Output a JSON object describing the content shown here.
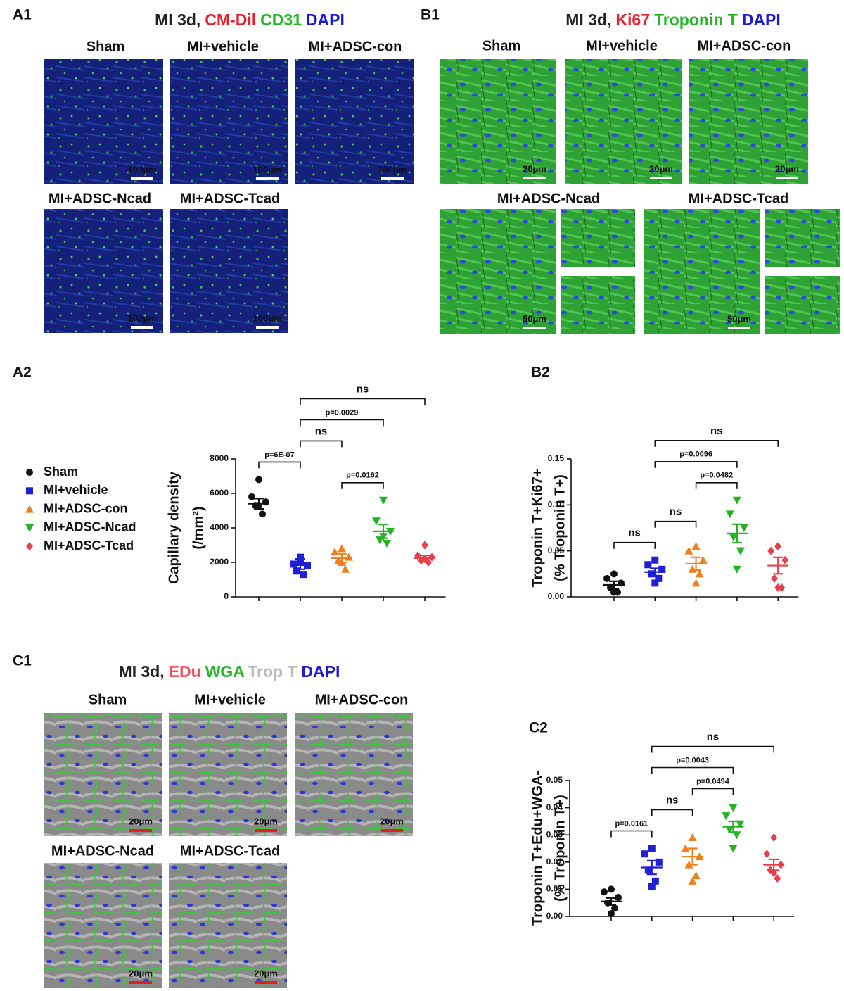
{
  "panels": [
    {
      "label": "A1",
      "title": [
        {
          "text": "MI 3d,",
          "color": "#222222"
        },
        {
          "text": "CM-Dil",
          "color": "#e8202a"
        },
        {
          "text": "CD31",
          "color": "#22b822"
        },
        {
          "text": "DAPI",
          "color": "#1a1ad0"
        }
      ],
      "images": [
        {
          "title": "Sham",
          "scale_bar": "100μm"
        },
        {
          "title": "MI+vehicle",
          "scale_bar": "100μm"
        },
        {
          "title": "MI+ADSC-con",
          "scale_bar": "100μm"
        },
        {
          "title": "MI+ADSC-Ncad",
          "scale_bar": "100μm"
        },
        {
          "title": "MI+ADSC-Tcad",
          "scale_bar": "100μm"
        }
      ]
    },
    {
      "label": "B1",
      "title": [
        {
          "text": "MI 3d,",
          "color": "#222222"
        },
        {
          "text": "Ki67",
          "color": "#e8202a"
        },
        {
          "text": "Troponin T",
          "color": "#22b822"
        },
        {
          "text": "DAPI",
          "color": "#1a1ad0"
        }
      ],
      "images": [
        {
          "title": "Sham",
          "scale_bar": "20μm"
        },
        {
          "title": "MI+vehicle",
          "scale_bar": "20μm"
        },
        {
          "title": "MI+ADSC-con",
          "scale_bar": "20μm"
        },
        {
          "title": "MI+ADSC-Ncad",
          "scale_bar": "50μm"
        },
        {
          "title": "MI+ADSC-Tcad",
          "scale_bar": "50μm"
        }
      ]
    },
    {
      "label": "C1",
      "title": [
        {
          "text": "MI 3d,",
          "color": "#222222"
        },
        {
          "text": "EDu",
          "color": "#f05060"
        },
        {
          "text": "WGA",
          "color": "#22b822"
        },
        {
          "text": "Trop T",
          "color": "#bbbbbb"
        },
        {
          "text": "DAPI",
          "color": "#1a1ad0"
        }
      ],
      "images": [
        {
          "title": "Sham",
          "scale_bar": "20μm"
        },
        {
          "title": "MI+vehicle",
          "scale_bar": "20μm"
        },
        {
          "title": "MI+ADSC-con",
          "scale_bar": "20μm"
        },
        {
          "title": "MI+ADSC-Ncad",
          "scale_bar": "20μm"
        },
        {
          "title": "MI+ADSC-Tcad",
          "scale_bar": "20μm"
        }
      ]
    }
  ],
  "chart_data": [
    {
      "type": "scatter",
      "label": "A2",
      "ylabel": [
        "Capillary density",
        "(/mm²)"
      ],
      "legend": true,
      "ylim": [
        0,
        8000
      ],
      "yticks": [
        0,
        2000,
        4000,
        6000,
        8000
      ],
      "series": [
        {
          "name": "Sham",
          "color": "#111111",
          "marker": "circle",
          "values": [
            6800,
            5800,
            5500,
            5300,
            4800,
            5300
          ],
          "mean": 5400,
          "sem": 300
        },
        {
          "name": "MI+vehicle",
          "color": "#1f1fd6",
          "marker": "square",
          "values": [
            2300,
            1900,
            1800,
            1500,
            1300,
            2000
          ],
          "mean": 1900,
          "sem": 300
        },
        {
          "name": "MI+ADSC-con",
          "color": "#f07f1e",
          "marker": "triangle-up",
          "values": [
            2800,
            2600,
            2300,
            2100,
            1600,
            2000
          ],
          "mean": 2250,
          "sem": 250
        },
        {
          "name": "MI+ADSC-Ncad",
          "color": "#22b422",
          "marker": "triangle-down",
          "values": [
            5600,
            4400,
            3800,
            3300,
            3100,
            3500
          ],
          "mean": 3800,
          "sem": 400
        },
        {
          "name": "MI+ADSC-Tcad",
          "color": "#e8404a",
          "marker": "diamond",
          "values": [
            3000,
            2400,
            2300,
            2100,
            2000,
            2200
          ],
          "mean": 2250,
          "sem": 150
        }
      ],
      "comparisons": [
        {
          "label": "p=0.0162",
          "groups": [
            "MI+ADSC-con",
            "MI+ADSC-Ncad"
          ]
        },
        {
          "label": "p=6E-07",
          "groups": [
            "Sham",
            "MI+vehicle"
          ]
        },
        {
          "label": "ns",
          "groups": [
            "MI+vehicle",
            "MI+ADSC-con"
          ]
        },
        {
          "label": "p=0.0029",
          "groups": [
            "MI+vehicle",
            "MI+ADSC-Ncad"
          ]
        },
        {
          "label": "ns",
          "groups": [
            "MI+vehicle",
            "MI+ADSC-Tcad"
          ]
        }
      ]
    },
    {
      "type": "scatter",
      "label": "B2",
      "ylabel": [
        "Troponin T+Ki67+",
        "(% Troponin T+)"
      ],
      "legend": false,
      "ylim": [
        0,
        0.15
      ],
      "yticks": [
        {
          "value": 0,
          "label": "0.00"
        },
        {
          "value": 0.05,
          "label": "0.05"
        },
        {
          "value": 0.1,
          "label": "0.10"
        },
        {
          "value": 0.15,
          "label": "0.15"
        }
      ],
      "series": [
        {
          "name": "Sham",
          "color": "#111111",
          "marker": "circle",
          "values": [
            0.025,
            0.02,
            0.015,
            0.01,
            0.005,
            0.005
          ],
          "mean": 0.013,
          "sem": 0.004
        },
        {
          "name": "MI+vehicle",
          "color": "#1f1fd6",
          "marker": "square",
          "values": [
            0.04,
            0.035,
            0.03,
            0.025,
            0.02,
            0.015
          ],
          "mean": 0.027,
          "sem": 0.004
        },
        {
          "name": "MI+ADSC-con",
          "color": "#f07f1e",
          "marker": "triangle-up",
          "values": [
            0.055,
            0.05,
            0.04,
            0.03,
            0.025,
            0.015
          ],
          "mean": 0.036,
          "sem": 0.007
        },
        {
          "name": "MI+ADSC-Ncad",
          "color": "#22b422",
          "marker": "triangle-down",
          "values": [
            0.105,
            0.09,
            0.075,
            0.065,
            0.05,
            0.03
          ],
          "mean": 0.069,
          "sem": 0.01
        },
        {
          "name": "MI+ADSC-Tcad",
          "color": "#e8404a",
          "marker": "diamond",
          "values": [
            0.055,
            0.05,
            0.04,
            0.02,
            0.01,
            0.01
          ],
          "mean": 0.034,
          "sem": 0.009
        }
      ],
      "comparisons": [
        {
          "label": "ns",
          "groups": [
            "Sham",
            "MI+vehicle"
          ]
        },
        {
          "label": "ns",
          "groups": [
            "MI+vehicle",
            "MI+ADSC-con"
          ]
        },
        {
          "label": "p=0.0482",
          "groups": [
            "MI+ADSC-con",
            "MI+ADSC-Ncad"
          ]
        },
        {
          "label": "p=0.0096",
          "groups": [
            "MI+vehicle",
            "MI+ADSC-Ncad"
          ]
        },
        {
          "label": "ns",
          "groups": [
            "MI+vehicle",
            "MI+ADSC-Tcad"
          ]
        }
      ]
    },
    {
      "type": "scatter",
      "label": "C2",
      "ylabel": [
        "Troponin T+Edu+WGA-",
        "(% Troponin T+)"
      ],
      "legend": false,
      "ylim": [
        0,
        0.05
      ],
      "yticks": [
        {
          "value": 0,
          "label": "0.00"
        },
        {
          "value": 0.01,
          "label": "0.01"
        },
        {
          "value": 0.02,
          "label": "0.02"
        },
        {
          "value": 0.03,
          "label": "0.03"
        },
        {
          "value": 0.04,
          "label": "0.04"
        },
        {
          "value": 0.05,
          "label": "0.05"
        }
      ],
      "series": [
        {
          "name": "Sham",
          "color": "#111111",
          "marker": "circle",
          "values": [
            0.01,
            0.009,
            0.007,
            0.005,
            0.003,
            0.001
          ],
          "mean": 0.0055,
          "sem": 0.0013
        },
        {
          "name": "MI+vehicle",
          "color": "#1f1fd6",
          "marker": "square",
          "values": [
            0.025,
            0.023,
            0.02,
            0.017,
            0.013,
            0.011
          ],
          "mean": 0.018,
          "sem": 0.0025
        },
        {
          "name": "MI+ADSC-con",
          "color": "#f07f1e",
          "marker": "triangle-up",
          "values": [
            0.029,
            0.025,
            0.022,
            0.019,
            0.015,
            0.013
          ],
          "mean": 0.022,
          "sem": 0.003
        },
        {
          "name": "MI+ADSC-Ncad",
          "color": "#22b422",
          "marker": "triangle-down",
          "values": [
            0.04,
            0.037,
            0.034,
            0.032,
            0.03,
            0.025
          ],
          "mean": 0.033,
          "sem": 0.002
        },
        {
          "name": "MI+ADSC-Tcad",
          "color": "#e8404a",
          "marker": "diamond",
          "values": [
            0.029,
            0.023,
            0.019,
            0.017,
            0.014,
            0.016
          ],
          "mean": 0.019,
          "sem": 0.002
        }
      ],
      "comparisons": [
        {
          "label": "p=0.0161",
          "groups": [
            "Sham",
            "MI+vehicle"
          ]
        },
        {
          "label": "ns",
          "groups": [
            "MI+vehicle",
            "MI+ADSC-con"
          ]
        },
        {
          "label": "p=0.0494",
          "groups": [
            "MI+ADSC-con",
            "MI+ADSC-Ncad"
          ]
        },
        {
          "label": "p=0.0043",
          "groups": [
            "MI+vehicle",
            "MI+ADSC-Ncad"
          ]
        },
        {
          "label": "ns",
          "groups": [
            "MI+vehicle",
            "MI+ADSC-Tcad"
          ]
        }
      ]
    }
  ]
}
